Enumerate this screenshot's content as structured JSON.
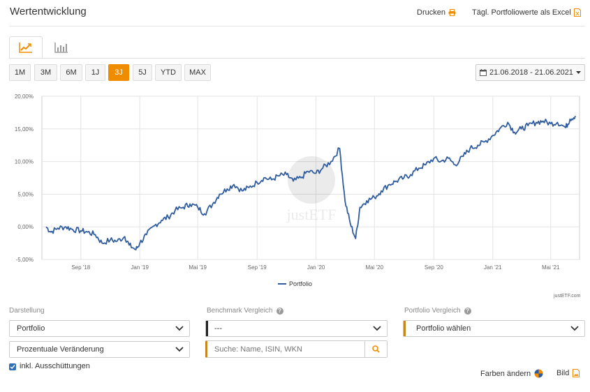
{
  "header": {
    "title": "Wertentwicklung",
    "print_label": "Drucken",
    "excel_label": "Tägl. Portfoliowerte als Excel"
  },
  "tabs": [
    {
      "name": "line-chart",
      "active": true
    },
    {
      "name": "bar-chart",
      "active": false
    }
  ],
  "ranges": [
    {
      "label": "1M",
      "active": false
    },
    {
      "label": "3M",
      "active": false
    },
    {
      "label": "6M",
      "active": false
    },
    {
      "label": "1J",
      "active": false
    },
    {
      "label": "3J",
      "active": true
    },
    {
      "label": "5J",
      "active": false
    },
    {
      "label": "YTD",
      "active": false
    },
    {
      "label": "MAX",
      "active": false
    }
  ],
  "date_range": "21.06.2018 - 21.06.2021",
  "colors": {
    "accent": "#f08c00",
    "series": "#2f5c9e",
    "benchmark_marker": "#222222",
    "portfolio_marker": "#c8861f",
    "checkbox": "#2f6fb4"
  },
  "chart_data": {
    "type": "line",
    "title": "",
    "xlabel": "",
    "ylabel": "",
    "ylim": [
      -5,
      20
    ],
    "y_ticks": [
      "20,00%",
      "15,00%",
      "10,00%",
      "5,00%",
      "0,00%",
      "-5,00%"
    ],
    "x_ticks": [
      "Sep '18",
      "Jan '19",
      "Mai '19",
      "Sep '19",
      "Jan '20",
      "Mai '20",
      "Sep '20",
      "Jan '21",
      "Mai '21"
    ],
    "grid": true,
    "legend_position": "bottom-center",
    "watermark": "justETF",
    "series": [
      {
        "name": "Portfolio",
        "x": [
          "2018-06-21",
          "2018-07-01",
          "2018-07-15",
          "2018-08-01",
          "2018-08-15",
          "2018-09-01",
          "2018-09-15",
          "2018-10-01",
          "2018-10-15",
          "2018-11-01",
          "2018-11-15",
          "2018-12-01",
          "2018-12-10",
          "2018-12-24",
          "2019-01-01",
          "2019-01-15",
          "2019-02-01",
          "2019-02-15",
          "2019-03-01",
          "2019-03-15",
          "2019-04-01",
          "2019-04-15",
          "2019-05-01",
          "2019-05-15",
          "2019-06-01",
          "2019-06-15",
          "2019-07-01",
          "2019-07-15",
          "2019-08-01",
          "2019-08-15",
          "2019-09-01",
          "2019-09-15",
          "2019-10-01",
          "2019-10-15",
          "2019-11-01",
          "2019-11-15",
          "2019-12-01",
          "2019-12-15",
          "2020-01-01",
          "2020-01-15",
          "2020-02-01",
          "2020-02-19",
          "2020-03-01",
          "2020-03-12",
          "2020-03-23",
          "2020-04-01",
          "2020-04-15",
          "2020-05-01",
          "2020-05-15",
          "2020-06-01",
          "2020-06-15",
          "2020-07-01",
          "2020-07-15",
          "2020-08-01",
          "2020-08-15",
          "2020-09-01",
          "2020-09-15",
          "2020-10-01",
          "2020-10-15",
          "2020-11-01",
          "2020-11-15",
          "2020-12-01",
          "2020-12-15",
          "2021-01-01",
          "2021-01-15",
          "2021-02-01",
          "2021-02-15",
          "2021-03-01",
          "2021-03-15",
          "2021-04-01",
          "2021-04-15",
          "2021-05-01",
          "2021-05-15",
          "2021-06-01",
          "2021-06-10",
          "2021-06-21"
        ],
        "values": [
          0.0,
          -0.8,
          -0.2,
          0.0,
          -0.4,
          -0.6,
          -0.8,
          -1.2,
          -2.5,
          -2.0,
          -2.2,
          -1.5,
          -2.8,
          -3.5,
          -2.5,
          -1.2,
          0.2,
          1.0,
          1.5,
          2.5,
          3.0,
          3.5,
          3.0,
          2.0,
          3.5,
          5.0,
          5.8,
          6.5,
          5.5,
          6.0,
          6.8,
          7.5,
          7.2,
          7.8,
          8.0,
          7.0,
          7.5,
          8.5,
          8.2,
          9.0,
          10.0,
          12.0,
          4.0,
          0.5,
          -1.8,
          3.0,
          4.0,
          4.5,
          5.5,
          6.5,
          7.0,
          7.5,
          8.0,
          9.0,
          9.5,
          10.5,
          10.0,
          10.5,
          9.5,
          10.8,
          12.0,
          12.5,
          13.0,
          14.0,
          15.0,
          16.0,
          14.5,
          15.0,
          15.5,
          16.0,
          16.2,
          15.8,
          16.0,
          15.2,
          16.5,
          17.0
        ]
      }
    ]
  },
  "credit": "justETF.com",
  "controls": {
    "darstellung_label": "Darstellung",
    "darstellung_select": "Portfolio",
    "veraenderung_select": "Prozentuale Veränderung",
    "benchmark_label": "Benchmark Vergleich",
    "benchmark_select": "---",
    "search_placeholder": "Suche: Name, ISIN, WKN",
    "portfolio_vergleich_label": "Portfolio Vergleich",
    "portfolio_select": "Portfolio wählen",
    "checkbox_label": "inkl. Ausschüttungen",
    "checkbox_checked": true,
    "farben_label": "Farben ändern",
    "bild_label": "Bild"
  }
}
